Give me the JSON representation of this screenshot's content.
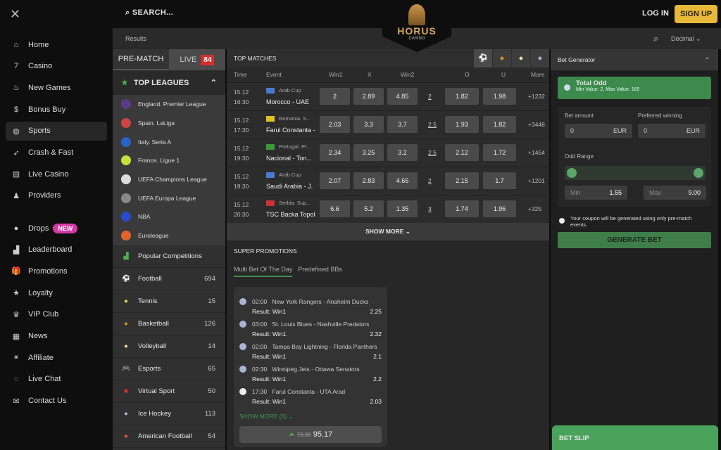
{
  "header": {
    "search": "SEARCH...",
    "login": "LOG IN",
    "signup": "SIGN UP",
    "logo_text": "HORUS",
    "logo_sub": "CASINO"
  },
  "subbar": {
    "results": "Results",
    "odds_format": "Decimal"
  },
  "sidebar": {
    "items": [
      {
        "label": "Home",
        "icon": "⌂"
      },
      {
        "label": "Casino",
        "icon": "7"
      },
      {
        "label": "New Games",
        "icon": "♨"
      },
      {
        "label": "Bonus Buy",
        "icon": "$"
      },
      {
        "label": "Sports",
        "icon": "◍",
        "active": true
      },
      {
        "label": "Crash & Fast",
        "icon": "➶"
      },
      {
        "label": "Live Casino",
        "icon": "▤"
      },
      {
        "label": "Providers",
        "icon": "♟"
      }
    ],
    "items2": [
      {
        "label": "Drops",
        "icon": "●",
        "badge": "NEW"
      },
      {
        "label": "Leaderboard",
        "icon": "▟"
      },
      {
        "label": "Promotions",
        "icon": "🎁"
      },
      {
        "label": "Loyalty",
        "icon": "★"
      },
      {
        "label": "VIP Club",
        "icon": "♛"
      },
      {
        "label": "News",
        "icon": "▦"
      },
      {
        "label": "Affiliate",
        "icon": "⚹"
      },
      {
        "label": "Live Chat",
        "icon": "◌"
      },
      {
        "label": "Contact Us",
        "icon": "✉"
      }
    ]
  },
  "left": {
    "prematch": "PRE-MATCH",
    "live": "LIVE",
    "live_count": "84",
    "top_leagues": "TOP LEAGUES",
    "leagues": [
      {
        "name": "England. Premier League",
        "color": "#5b3a8c"
      },
      {
        "name": "Spain. LaLiga",
        "color": "#c44"
      },
      {
        "name": "Italy. Seria A",
        "color": "#2a62c9"
      },
      {
        "name": "France. Ligue 1",
        "color": "#c8e03a"
      },
      {
        "name": "UEFA Champions League",
        "color": "#ddd"
      },
      {
        "name": "UEFA Europa League",
        "color": "#888"
      },
      {
        "name": "NBA",
        "color": "#2a4ac9"
      },
      {
        "name": "Euroleague",
        "color": "#e0642a"
      }
    ],
    "popular": "Popular Competitions",
    "sports": [
      {
        "name": "Football",
        "count": "694",
        "icon": "⚽",
        "color": "#ddd"
      },
      {
        "name": "Tennis",
        "count": "15",
        "icon": "●",
        "color": "#e8e03a"
      },
      {
        "name": "Basketball",
        "count": "126",
        "icon": "●",
        "color": "#e08a2a"
      },
      {
        "name": "Volleyball",
        "count": "14",
        "icon": "●",
        "color": "#e8e0a0"
      },
      {
        "name": "Esports",
        "count": "65",
        "icon": "🎮",
        "color": "#6a7ae0"
      },
      {
        "name": "Virtual Sport",
        "count": "50",
        "icon": "■",
        "color": "#d33"
      },
      {
        "name": "Ice Hockey",
        "count": "113",
        "icon": "●",
        "color": "#aab3d6"
      },
      {
        "name": "American Football",
        "count": "54",
        "icon": "●",
        "color": "#e0642a"
      }
    ]
  },
  "top_matches": {
    "title": "TOP MATCHES",
    "columns": [
      "Time",
      "Event",
      "Win1",
      "X",
      "Win2",
      "O",
      "U",
      "More"
    ],
    "rows": [
      {
        "date": "15.12",
        "time": "16:30",
        "league": "Arab Cup",
        "flag": "#4a7ad0",
        "event": "Morocco  -  UAE",
        "w1": "2",
        "x": "2.89",
        "w2": "4.85",
        "line": "2",
        "o": "1.82",
        "u": "1.98",
        "more": "+1232"
      },
      {
        "date": "15.12",
        "time": "17:30",
        "league": "Romania. S...",
        "flag": "#e0c020",
        "event": "Farul Constanta  -",
        "w1": "2.03",
        "x": "3.3",
        "w2": "3.7",
        "line": "2.5",
        "o": "1.93",
        "u": "1.82",
        "more": "+3448"
      },
      {
        "date": "15.12",
        "time": "19:30",
        "league": "Portugal. Pr...",
        "flag": "#3a9a3a",
        "event": "Nacional  -  Ton...",
        "w1": "2.34",
        "x": "3.25",
        "w2": "3.2",
        "line": "2.5",
        "o": "2.12",
        "u": "1.72",
        "more": "+1454"
      },
      {
        "date": "15.12",
        "time": "19:30",
        "league": "Arab Cup",
        "flag": "#4a7ad0",
        "event": "Saudi Arabia  -  J.",
        "w1": "2.07",
        "x": "2.83",
        "w2": "4.65",
        "line": "2",
        "o": "2.15",
        "u": "1.7",
        "more": "+1201"
      },
      {
        "date": "15.12",
        "time": "20:30",
        "league": "Serbia. Sup...",
        "flag": "#c33",
        "event": "TSC Backa Topola",
        "w1": "6.6",
        "x": "5.2",
        "w2": "1.35",
        "line": "3",
        "o": "1.74",
        "u": "1.96",
        "more": "+325"
      }
    ],
    "show_more": "SHOW MORE"
  },
  "promotions": {
    "title": "SUPER PROMOTIONS",
    "tabs": [
      "Multi Bet Of The Day",
      "Predefined BBs"
    ],
    "picks": [
      {
        "time": "02:00",
        "match": "New York Rangers - Anaheim Ducks",
        "result": "Result: Win1",
        "odd": "2.25"
      },
      {
        "time": "03:00",
        "match": "St. Louis Blues - Nashville Predators",
        "result": "Result: Win1",
        "odd": "2.32"
      },
      {
        "time": "02:00",
        "match": "Tampa Bay Lightning - Florida Panthers",
        "result": "Result: Win1",
        "odd": "2.1"
      },
      {
        "time": "02:30",
        "match": "Winnipeg Jets - Ottawa Senators",
        "result": "Result: Win1",
        "odd": "2.2"
      },
      {
        "time": "17:30",
        "match": "Farul Constanta - UTA Arad",
        "result": "Result: Win1",
        "odd": "2.03"
      }
    ],
    "show_more": "SHOW MORE (6)",
    "old_total": "79.30",
    "total": "95.17"
  },
  "bet_generator": {
    "title": "Bet Generator",
    "total_odd": "Total Odd",
    "total_odd_range": "Min Value: 2, Max Value: 165",
    "bet_amount": "Bet amount",
    "bet_amount_value": "0",
    "preferred": "Preferred winning",
    "preferred_value": "0",
    "currency": "EUR",
    "odd_range": "Odd Range",
    "min_label": "Min",
    "min_value": "1.55",
    "max_label": "Max",
    "max_value": "9.00",
    "note": "Your coupon will be generated using only pre-match events.",
    "generate": "GENERATE BET"
  },
  "bet_slip": "BET SLIP",
  "colors": {
    "accent_green": "#3f8f4f",
    "signup": "#e6b93a",
    "live_badge": "#d3302a",
    "new_badge": "#d63aa5"
  }
}
